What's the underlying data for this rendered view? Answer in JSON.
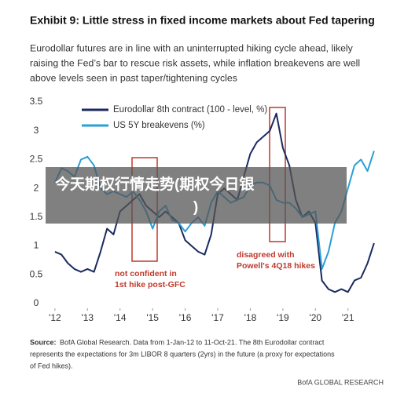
{
  "chart_data": {
    "type": "line",
    "title": "Exhibit 9: Little stress in fixed income markets about Fed tapering",
    "subtitle": [
      "Eurodollar futures are in line with an uninterrupted hiking cycle ahead, likely",
      "raising the Fed’s bar to rescue risk assets, while inflation breakevens are well",
      "above levels seen in past taper/tightening cycles"
    ],
    "x": [
      2012.0,
      2012.2,
      2012.4,
      2012.6,
      2012.8,
      2013.0,
      2013.2,
      2013.4,
      2013.6,
      2013.8,
      2014.0,
      2014.2,
      2014.4,
      2014.6,
      2014.8,
      2015.0,
      2015.2,
      2015.4,
      2015.6,
      2015.8,
      2016.0,
      2016.2,
      2016.4,
      2016.6,
      2016.8,
      2017.0,
      2017.2,
      2017.4,
      2017.6,
      2017.8,
      2018.0,
      2018.2,
      2018.4,
      2018.6,
      2018.8,
      2019.0,
      2019.2,
      2019.4,
      2019.6,
      2019.8,
      2020.0,
      2020.2,
      2020.4,
      2020.6,
      2020.8,
      2021.0,
      2021.2,
      2021.4,
      2021.6,
      2021.8
    ],
    "series": [
      {
        "name": "Eurodollar 8th contract (100 - level, %)",
        "color": "#1b2a5e",
        "values": [
          0.9,
          0.85,
          0.7,
          0.6,
          0.55,
          0.6,
          0.55,
          0.9,
          1.3,
          1.2,
          1.6,
          1.7,
          1.8,
          1.9,
          1.7,
          1.6,
          1.5,
          1.6,
          1.5,
          1.4,
          1.1,
          1.0,
          0.9,
          0.85,
          1.2,
          1.9,
          2.0,
          1.9,
          1.8,
          2.2,
          2.6,
          2.8,
          2.9,
          3.0,
          3.3,
          2.7,
          2.4,
          1.8,
          1.5,
          1.6,
          1.4,
          0.4,
          0.25,
          0.2,
          0.25,
          0.2,
          0.4,
          0.45,
          0.7,
          1.05
        ]
      },
      {
        "name": "US 5Y breakevens (%)",
        "color": "#2a9fd6",
        "values": [
          2.1,
          2.35,
          2.3,
          2.2,
          2.5,
          2.55,
          2.4,
          2.0,
          1.9,
          1.95,
          1.9,
          1.85,
          1.95,
          1.8,
          1.6,
          1.3,
          1.6,
          1.7,
          1.45,
          1.4,
          1.25,
          1.4,
          1.5,
          1.35,
          1.75,
          1.95,
          1.85,
          1.75,
          1.8,
          1.85,
          2.05,
          2.1,
          2.1,
          2.05,
          1.8,
          1.75,
          1.75,
          1.65,
          1.5,
          1.55,
          1.6,
          0.6,
          0.9,
          1.4,
          1.6,
          2.0,
          2.4,
          2.5,
          2.3,
          2.65
        ]
      }
    ],
    "xlim": [
      2011.81,
      2021.9
    ],
    "xticks": [
      {
        "value": 2012,
        "label": "'12"
      },
      {
        "value": 2013,
        "label": "'13"
      },
      {
        "value": 2014,
        "label": "'14"
      },
      {
        "value": 2015,
        "label": "'15"
      },
      {
        "value": 2016,
        "label": "'16"
      },
      {
        "value": 2017,
        "label": "'17"
      },
      {
        "value": 2018,
        "label": "'18"
      },
      {
        "value": 2019,
        "label": "'19"
      },
      {
        "value": 2020,
        "label": "'20"
      },
      {
        "value": 2021,
        "label": "'21"
      }
    ],
    "ylim": [
      0,
      3.5
    ],
    "yticks": [
      0,
      0.5,
      1,
      1.5,
      2,
      2.5,
      3,
      3.5
    ],
    "grid": false,
    "annotations": [
      {
        "lines": [
          "not confident in",
          "1st hike post-GFC"
        ],
        "color": "#c0392b"
      },
      {
        "lines": [
          "disagreed with",
          "Powell's 4Q18 hikes"
        ],
        "color": "#c0392b"
      }
    ],
    "source_label": "Source:",
    "source": [
      "BofA Global Research. Data from 1-Jan-12 to 11-Oct-21. The 8th Eurodollar contract",
      "represents the expectations  for 3m LIBOR 8 quarters (2yrs) in the future (a proxy for expectations",
      "of Fed hikes)."
    ],
    "brand": "BofA GLOBAL RESEARCH"
  },
  "overlay_banner": [
    "今天期权行情走势(期权今日银",
    ")"
  ]
}
